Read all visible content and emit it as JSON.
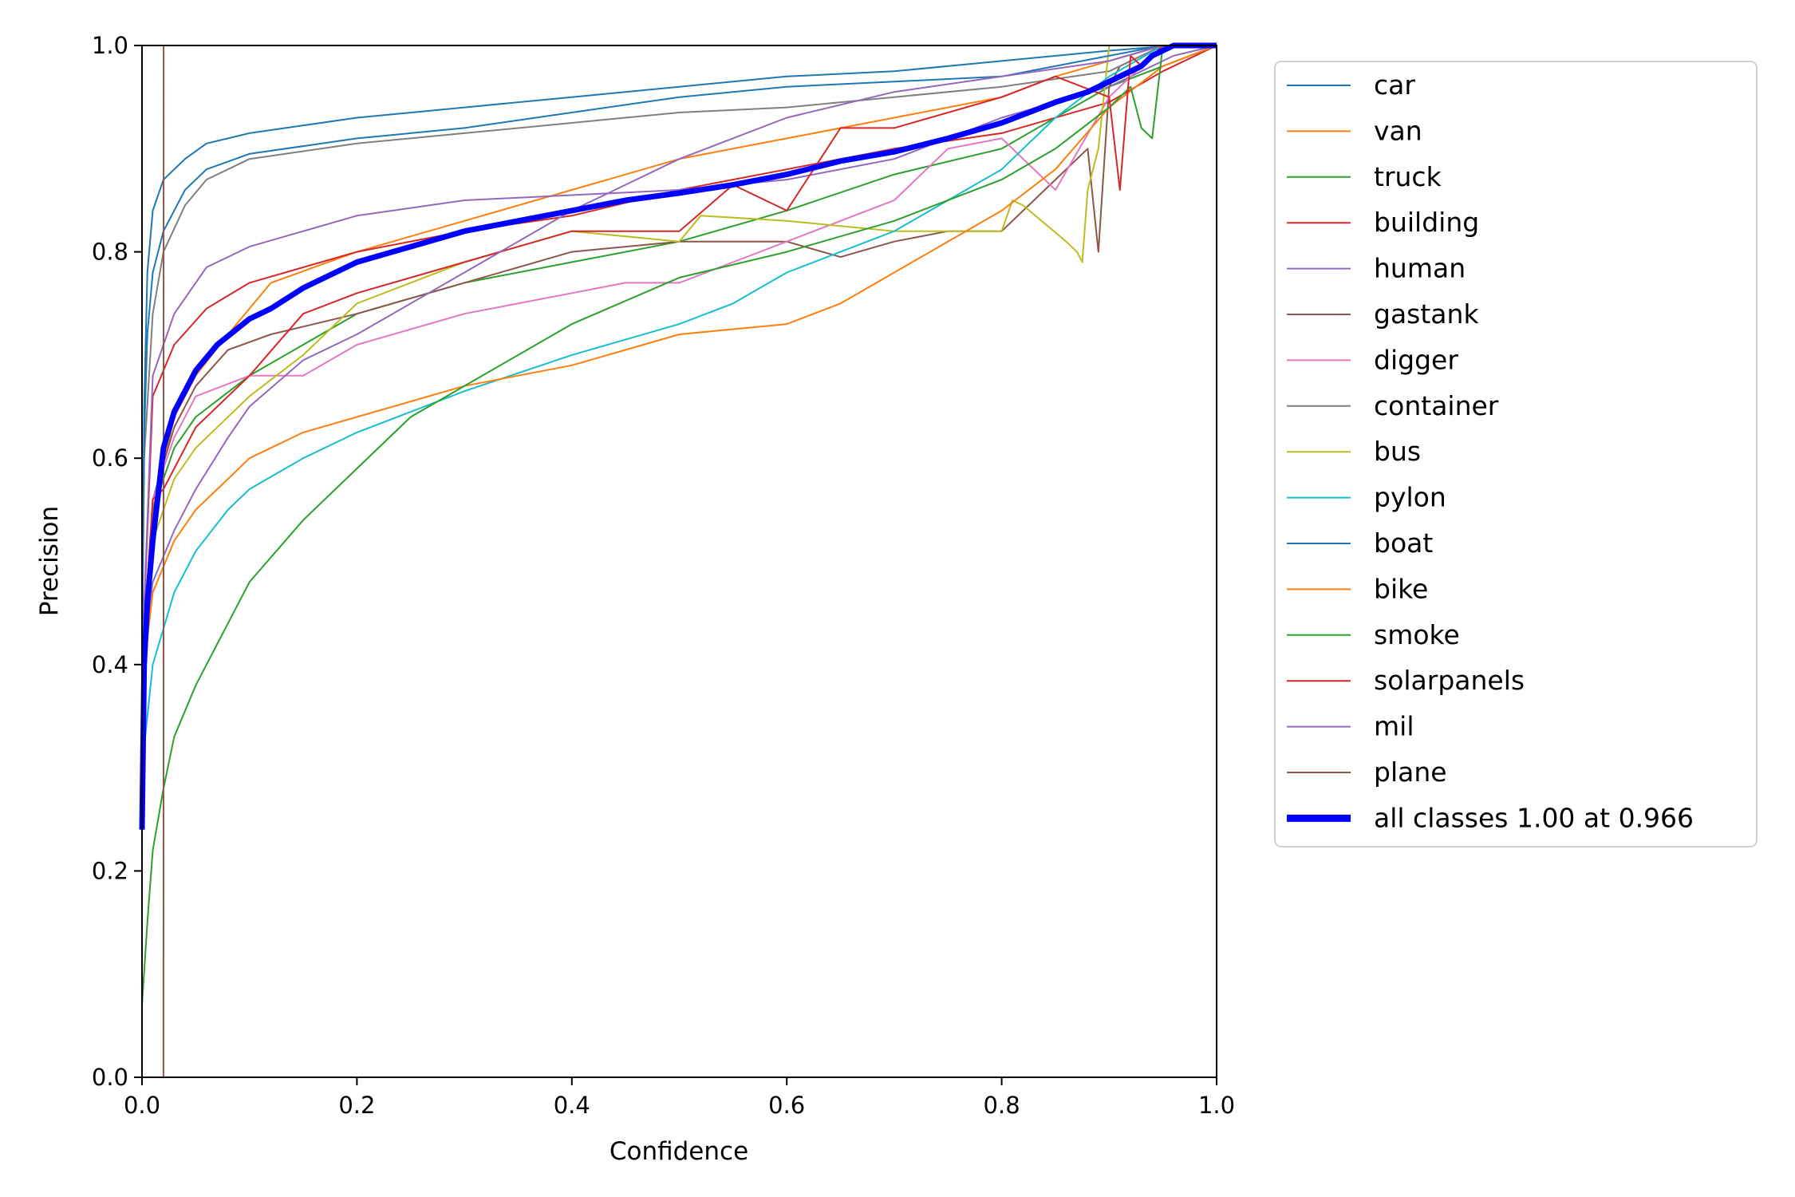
{
  "chart_data": {
    "type": "line",
    "title": "",
    "xlabel": "Confidence",
    "ylabel": "Precision",
    "xlim": [
      0,
      1
    ],
    "ylim": [
      0,
      1
    ],
    "xticks": [
      "0.0",
      "0.2",
      "0.4",
      "0.6",
      "0.8",
      "1.0"
    ],
    "yticks": [
      "0.0",
      "0.2",
      "0.4",
      "0.6",
      "0.8",
      "1.0"
    ],
    "grid": false,
    "legend_position": "outside-right",
    "series": [
      {
        "name": "car",
        "color": "#1f77b4",
        "width": "thin",
        "x": [
          0,
          0.002,
          0.005,
          0.01,
          0.02,
          0.04,
          0.06,
          0.1,
          0.2,
          0.3,
          0.4,
          0.5,
          0.6,
          0.7,
          0.8,
          0.9,
          0.96,
          1.0
        ],
        "y": [
          0.4,
          0.65,
          0.78,
          0.84,
          0.87,
          0.89,
          0.905,
          0.915,
          0.93,
          0.94,
          0.95,
          0.96,
          0.97,
          0.975,
          0.985,
          0.995,
          1.0,
          1.0
        ]
      },
      {
        "name": "van",
        "color": "#ff7f0e",
        "width": "thin",
        "x": [
          0,
          0.01,
          0.03,
          0.05,
          0.08,
          0.12,
          0.2,
          0.3,
          0.4,
          0.5,
          0.6,
          0.7,
          0.8,
          0.85,
          0.9,
          0.95,
          1.0
        ],
        "y": [
          0.4,
          0.55,
          0.64,
          0.68,
          0.72,
          0.77,
          0.8,
          0.83,
          0.86,
          0.89,
          0.91,
          0.93,
          0.95,
          0.97,
          0.985,
          1.0,
          1.0
        ]
      },
      {
        "name": "truck",
        "color": "#2ca02c",
        "width": "thin",
        "x": [
          0,
          0.01,
          0.03,
          0.05,
          0.1,
          0.2,
          0.3,
          0.4,
          0.5,
          0.6,
          0.7,
          0.8,
          0.85,
          0.9,
          0.95,
          1.0
        ],
        "y": [
          0.4,
          0.55,
          0.61,
          0.64,
          0.68,
          0.74,
          0.77,
          0.79,
          0.81,
          0.84,
          0.875,
          0.9,
          0.93,
          0.96,
          0.98,
          1.0
        ]
      },
      {
        "name": "building",
        "color": "#d62728",
        "width": "thin",
        "x": [
          0,
          0.01,
          0.03,
          0.06,
          0.1,
          0.15,
          0.2,
          0.3,
          0.4,
          0.5,
          0.6,
          0.7,
          0.8,
          0.9,
          0.95,
          1.0
        ],
        "y": [
          0.4,
          0.66,
          0.71,
          0.745,
          0.77,
          0.785,
          0.8,
          0.82,
          0.835,
          0.86,
          0.88,
          0.9,
          0.915,
          0.945,
          0.975,
          1.0
        ]
      },
      {
        "name": "human",
        "color": "#9467bd",
        "width": "thin",
        "x": [
          0,
          0.01,
          0.03,
          0.06,
          0.1,
          0.2,
          0.3,
          0.4,
          0.5,
          0.6,
          0.7,
          0.8,
          0.9,
          0.96,
          1.0
        ],
        "y": [
          0.4,
          0.68,
          0.74,
          0.785,
          0.805,
          0.835,
          0.85,
          0.855,
          0.86,
          0.87,
          0.89,
          0.93,
          0.96,
          0.99,
          1.0
        ]
      },
      {
        "name": "gastank",
        "color": "#8c564b",
        "width": "thin",
        "x": [
          0,
          0.01,
          0.03,
          0.05,
          0.08,
          0.12,
          0.2,
          0.3,
          0.4,
          0.5,
          0.6,
          0.65,
          0.7,
          0.75,
          0.8,
          0.85,
          0.88,
          0.89,
          0.9,
          0.91,
          0.95,
          1.0
        ],
        "y": [
          0.4,
          0.56,
          0.63,
          0.67,
          0.705,
          0.72,
          0.74,
          0.77,
          0.8,
          0.81,
          0.81,
          0.795,
          0.81,
          0.82,
          0.82,
          0.87,
          0.9,
          0.8,
          0.96,
          0.98,
          1.0,
          1.0
        ]
      },
      {
        "name": "digger",
        "color": "#e377c2",
        "width": "thin",
        "x": [
          0,
          0.01,
          0.03,
          0.05,
          0.1,
          0.15,
          0.2,
          0.3,
          0.4,
          0.45,
          0.5,
          0.55,
          0.6,
          0.65,
          0.7,
          0.75,
          0.8,
          0.85,
          0.9,
          0.95,
          1.0
        ],
        "y": [
          0.4,
          0.56,
          0.62,
          0.66,
          0.68,
          0.68,
          0.71,
          0.74,
          0.76,
          0.77,
          0.77,
          0.79,
          0.81,
          0.83,
          0.85,
          0.9,
          0.91,
          0.86,
          0.95,
          1.0,
          1.0
        ]
      },
      {
        "name": "container",
        "color": "#7f7f7f",
        "width": "thin",
        "x": [
          0,
          0.002,
          0.01,
          0.02,
          0.04,
          0.06,
          0.1,
          0.2,
          0.3,
          0.4,
          0.5,
          0.6,
          0.7,
          0.8,
          0.9,
          0.95,
          1.0
        ],
        "y": [
          0.4,
          0.6,
          0.74,
          0.8,
          0.845,
          0.87,
          0.89,
          0.905,
          0.915,
          0.925,
          0.935,
          0.94,
          0.95,
          0.96,
          0.975,
          1.0,
          1.0
        ]
      },
      {
        "name": "bus",
        "color": "#bcbd22",
        "width": "thin",
        "x": [
          0,
          0.01,
          0.03,
          0.05,
          0.1,
          0.15,
          0.2,
          0.3,
          0.4,
          0.5,
          0.52,
          0.6,
          0.7,
          0.8,
          0.81,
          0.82,
          0.86,
          0.87,
          0.875,
          0.88,
          0.89,
          0.9,
          0.95,
          1.0
        ],
        "y": [
          0.4,
          0.52,
          0.58,
          0.61,
          0.66,
          0.7,
          0.75,
          0.79,
          0.82,
          0.81,
          0.835,
          0.83,
          0.82,
          0.82,
          0.85,
          0.845,
          0.81,
          0.8,
          0.79,
          0.86,
          0.9,
          1.0,
          1.0,
          1.0
        ]
      },
      {
        "name": "pylon",
        "color": "#17becf",
        "width": "thin",
        "x": [
          0,
          0.01,
          0.03,
          0.05,
          0.08,
          0.1,
          0.15,
          0.2,
          0.3,
          0.4,
          0.5,
          0.55,
          0.6,
          0.65,
          0.7,
          0.75,
          0.8,
          0.85,
          0.9,
          0.95,
          1.0
        ],
        "y": [
          0.3,
          0.4,
          0.47,
          0.51,
          0.55,
          0.57,
          0.6,
          0.625,
          0.665,
          0.7,
          0.73,
          0.75,
          0.78,
          0.8,
          0.82,
          0.85,
          0.88,
          0.93,
          0.97,
          1.0,
          1.0
        ]
      },
      {
        "name": "boat",
        "color": "#1f77b4",
        "width": "thin",
        "x": [
          0,
          0.002,
          0.005,
          0.01,
          0.02,
          0.04,
          0.06,
          0.1,
          0.2,
          0.3,
          0.4,
          0.5,
          0.6,
          0.7,
          0.8,
          0.9,
          0.95,
          1.0
        ],
        "y": [
          0.4,
          0.62,
          0.72,
          0.78,
          0.82,
          0.86,
          0.88,
          0.895,
          0.91,
          0.92,
          0.935,
          0.95,
          0.96,
          0.965,
          0.97,
          0.99,
          1.0,
          1.0
        ]
      },
      {
        "name": "bike",
        "color": "#ff7f0e",
        "width": "thin",
        "x": [
          0,
          0.01,
          0.03,
          0.05,
          0.08,
          0.1,
          0.15,
          0.2,
          0.3,
          0.4,
          0.5,
          0.6,
          0.65,
          0.7,
          0.75,
          0.8,
          0.85,
          0.9,
          0.95,
          1.0
        ],
        "y": [
          0.38,
          0.47,
          0.52,
          0.55,
          0.58,
          0.6,
          0.625,
          0.64,
          0.67,
          0.69,
          0.72,
          0.73,
          0.75,
          0.78,
          0.81,
          0.84,
          0.88,
          0.94,
          0.98,
          1.0
        ]
      },
      {
        "name": "smoke",
        "color": "#2ca02c",
        "width": "thin",
        "x": [
          0,
          0.005,
          0.01,
          0.02,
          0.03,
          0.05,
          0.08,
          0.1,
          0.15,
          0.2,
          0.25,
          0.3,
          0.4,
          0.5,
          0.6,
          0.7,
          0.8,
          0.85,
          0.9,
          0.92,
          0.93,
          0.94,
          0.95,
          1.0
        ],
        "y": [
          0.07,
          0.15,
          0.22,
          0.28,
          0.33,
          0.38,
          0.44,
          0.48,
          0.54,
          0.59,
          0.64,
          0.67,
          0.73,
          0.775,
          0.8,
          0.83,
          0.87,
          0.9,
          0.94,
          0.96,
          0.92,
          0.91,
          1.0,
          1.0
        ]
      },
      {
        "name": "solarpanels",
        "color": "#d62728",
        "width": "thin",
        "x": [
          0,
          0.01,
          0.02,
          0.05,
          0.1,
          0.15,
          0.2,
          0.3,
          0.4,
          0.5,
          0.55,
          0.6,
          0.65,
          0.7,
          0.8,
          0.85,
          0.9,
          0.91,
          0.92,
          0.93,
          0.95,
          1.0
        ],
        "y": [
          0.4,
          0.56,
          0.57,
          0.63,
          0.68,
          0.74,
          0.76,
          0.79,
          0.82,
          0.82,
          0.865,
          0.84,
          0.92,
          0.92,
          0.95,
          0.97,
          0.95,
          0.86,
          0.99,
          0.98,
          1.0,
          1.0
        ]
      },
      {
        "name": "mil",
        "color": "#9467bd",
        "width": "thin",
        "x": [
          0,
          0.01,
          0.03,
          0.05,
          0.08,
          0.1,
          0.15,
          0.2,
          0.25,
          0.3,
          0.4,
          0.5,
          0.6,
          0.7,
          0.8,
          0.9,
          0.95,
          1.0
        ],
        "y": [
          0.4,
          0.48,
          0.53,
          0.57,
          0.62,
          0.65,
          0.695,
          0.72,
          0.75,
          0.78,
          0.84,
          0.89,
          0.93,
          0.955,
          0.97,
          0.985,
          1.0,
          1.0
        ]
      },
      {
        "name": "plane",
        "color": "#8c564b",
        "width": "thin",
        "x": [
          0,
          0.02,
          0.0201,
          0.021
        ],
        "y": [
          0.0,
          0.0,
          1.0,
          1.0
        ]
      },
      {
        "name": "all classes 1.00 at 0.966",
        "color": "#0000ff",
        "width": "thick",
        "x": [
          0,
          0.002,
          0.005,
          0.01,
          0.02,
          0.03,
          0.05,
          0.07,
          0.1,
          0.12,
          0.15,
          0.2,
          0.25,
          0.3,
          0.35,
          0.4,
          0.45,
          0.5,
          0.55,
          0.6,
          0.65,
          0.7,
          0.75,
          0.8,
          0.85,
          0.88,
          0.9,
          0.92,
          0.93,
          0.94,
          0.96,
          0.97,
          1.0
        ],
        "y": [
          0.24,
          0.4,
          0.46,
          0.52,
          0.61,
          0.645,
          0.685,
          0.71,
          0.735,
          0.745,
          0.765,
          0.79,
          0.805,
          0.82,
          0.83,
          0.84,
          0.85,
          0.857,
          0.865,
          0.875,
          0.888,
          0.897,
          0.91,
          0.925,
          0.945,
          0.955,
          0.965,
          0.975,
          0.98,
          0.99,
          1.0,
          1.0,
          1.0
        ]
      }
    ]
  }
}
